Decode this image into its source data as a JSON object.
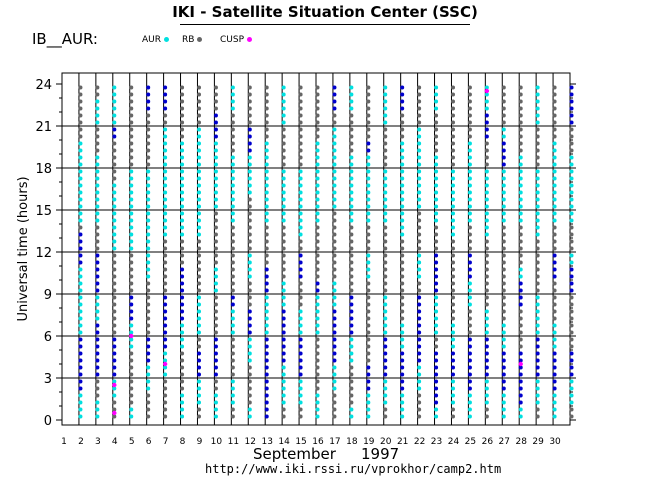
{
  "title": "IKI - Satellite Situation Center (SSC)",
  "satellite_label": "IB__AUR:",
  "legend": [
    {
      "label": "AUR",
      "color": "#00e0e0"
    },
    {
      "label": "RB",
      "color": "#666666"
    },
    {
      "label": "CUSP",
      "color": "#ff00ff"
    }
  ],
  "footer": {
    "month": "September",
    "year": "1997",
    "url": "http://www.iki.rssi.ru/vprokhor/camp2.htm"
  },
  "colors": {
    "AUR": "#00e0e0",
    "RB": "#666666",
    "CUSP": "#ff00ff",
    "dark": "#0000cc"
  },
  "chart_data": {
    "type": "scatter",
    "title": "IKI - Satellite Situation Center (SSC)",
    "xlabel": "September 1997",
    "ylabel": "Universal time (hours)",
    "x_categories": [
      "1",
      "2",
      "3",
      "4",
      "5",
      "6",
      "7",
      "8",
      "9",
      "10",
      "11",
      "12",
      "13",
      "14",
      "15",
      "16",
      "17",
      "18",
      "19",
      "20",
      "21",
      "22",
      "23",
      "24",
      "25",
      "26",
      "27",
      "28",
      "29",
      "30"
    ],
    "ylim": [
      0,
      24
    ],
    "yticks": [
      "0",
      "3",
      "6",
      "9",
      "12",
      "15",
      "18",
      "21",
      "24"
    ],
    "grid": true,
    "legend_position": "top",
    "series": [
      {
        "name": "AUR",
        "segments": [
          [
            [
              1,
              0,
              2
            ],
            [
              1,
              6,
              11
            ],
            [
              1,
              14,
              20
            ]
          ],
          [
            [
              2,
              0,
              1.5
            ],
            [
              2,
              7,
              9
            ],
            [
              2,
              14,
              19
            ],
            [
              2,
              21,
              23
            ]
          ],
          [
            [
              3,
              1.5,
              3
            ],
            [
              3,
              12,
              17
            ],
            [
              3,
              21,
              24
            ]
          ],
          [
            [
              4,
              0,
              1
            ],
            [
              4,
              5,
              7
            ],
            [
              4,
              12,
              18
            ]
          ],
          [
            [
              5,
              2,
              4
            ],
            [
              5,
              10,
              18
            ],
            [
              5,
              22,
              24
            ]
          ],
          [
            [
              6,
              3,
              5
            ],
            [
              6,
              13,
              21
            ]
          ],
          [
            [
              7,
              0,
              2
            ],
            [
              7,
              5,
              7
            ],
            [
              7,
              13,
              20
            ]
          ],
          [
            [
              8,
              1,
              3
            ],
            [
              8,
              6,
              9
            ],
            [
              8,
              13,
              21
            ]
          ],
          [
            [
              9,
              0,
              2
            ],
            [
              9,
              9,
              11
            ],
            [
              9,
              15,
              20
            ]
          ],
          [
            [
              10,
              1,
              3
            ],
            [
              10,
              6,
              8
            ],
            [
              10,
              14,
              19
            ],
            [
              10,
              22,
              24
            ]
          ],
          [
            [
              11,
              0,
              1
            ],
            [
              11,
              4,
              6
            ],
            [
              11,
              10,
              12
            ],
            [
              11,
              16,
              21
            ]
          ],
          [
            [
              12,
              0,
              2
            ],
            [
              12,
              6,
              9
            ],
            [
              12,
              14,
              20
            ]
          ],
          [
            [
              13,
              1,
              4
            ],
            [
              13,
              8,
              10
            ],
            [
              13,
              14,
              18
            ],
            [
              13,
              21,
              24
            ]
          ],
          [
            [
              14,
              1,
              3
            ],
            [
              14,
              6,
              8
            ],
            [
              14,
              13,
              18
            ]
          ],
          [
            [
              15,
              0,
              2
            ],
            [
              15,
              6,
              9
            ],
            [
              15,
              14,
              20
            ]
          ],
          [
            [
              16,
              2,
              4
            ],
            [
              16,
              8,
              10
            ],
            [
              16,
              15,
              21
            ]
          ],
          [
            [
              17,
              0,
              1
            ],
            [
              17,
              4,
              6
            ],
            [
              17,
              14,
              19
            ],
            [
              17,
              22,
              24
            ]
          ],
          [
            [
              18,
              0,
              2
            ],
            [
              18,
              10,
              12
            ],
            [
              18,
              14,
              20
            ]
          ],
          [
            [
              19,
              1,
              3
            ],
            [
              19,
              6,
              9
            ],
            [
              19,
              14,
              18
            ],
            [
              19,
              21,
              24
            ]
          ],
          [
            [
              20,
              0,
              2
            ],
            [
              20,
              5,
              7
            ],
            [
              20,
              13,
              20
            ]
          ],
          [
            [
              21,
              2,
              4
            ],
            [
              21,
              10,
              12
            ],
            [
              21,
              15,
              21
            ]
          ],
          [
            [
              22,
              0,
              1
            ],
            [
              22,
              6,
              9
            ],
            [
              22,
              14,
              19
            ],
            [
              22,
              22,
              24
            ]
          ],
          [
            [
              23,
              1,
              3
            ],
            [
              23,
              5,
              7
            ],
            [
              23,
              13,
              18
            ]
          ],
          [
            [
              24,
              0,
              2
            ],
            [
              24,
              8,
              10
            ],
            [
              24,
              14,
              20
            ]
          ],
          [
            [
              25,
              1,
              3
            ],
            [
              25,
              6,
              8
            ],
            [
              25,
              13,
              18
            ],
            [
              25,
              22,
              24
            ]
          ],
          [
            [
              26,
              0,
              2
            ],
            [
              26,
              5,
              7
            ],
            [
              26,
              14,
              21
            ]
          ],
          [
            [
              27,
              0,
              1
            ],
            [
              27,
              9,
              11
            ],
            [
              27,
              14,
              19
            ]
          ],
          [
            [
              28,
              1,
              3
            ],
            [
              28,
              6,
              9
            ],
            [
              28,
              13,
              18
            ],
            [
              28,
              21,
              24
            ]
          ],
          [
            [
              29,
              0,
              2
            ],
            [
              29,
              5,
              7
            ],
            [
              29,
              14,
              20
            ]
          ],
          [
            [
              30,
              1,
              3
            ],
            [
              30,
              10,
              12
            ],
            [
              30,
              14,
              19
            ]
          ]
        ]
      },
      {
        "name": "CUSP",
        "points": [
          [
            3,
            0.5
          ],
          [
            4,
            6
          ],
          [
            6,
            4
          ],
          [
            25,
            23.5
          ],
          [
            27,
            4
          ],
          [
            3,
            2.5
          ]
        ]
      }
    ],
    "dark_segments": [
      [
        1,
        2,
        6
      ],
      [
        1,
        11,
        13.5
      ],
      [
        2,
        3,
        7
      ],
      [
        2,
        9,
        12
      ],
      [
        3,
        3,
        6
      ],
      [
        3,
        20,
        21
      ],
      [
        4,
        7,
        9
      ],
      [
        5,
        4,
        6
      ],
      [
        5,
        22,
        24
      ],
      [
        6,
        5,
        9
      ],
      [
        6,
        22,
        24
      ],
      [
        7,
        7,
        11
      ],
      [
        8,
        3,
        5
      ],
      [
        9,
        3,
        6
      ],
      [
        9,
        20,
        22
      ],
      [
        10,
        8,
        9
      ],
      [
        11,
        6,
        8
      ],
      [
        11,
        19,
        21
      ],
      [
        12,
        0,
        6
      ],
      [
        12,
        9,
        11
      ],
      [
        13,
        4,
        8
      ],
      [
        14,
        3,
        6
      ],
      [
        14,
        10,
        12
      ],
      [
        15,
        9,
        10
      ],
      [
        16,
        4,
        8
      ],
      [
        16,
        22,
        24
      ],
      [
        17,
        6,
        9
      ],
      [
        18,
        2,
        4
      ],
      [
        18,
        19,
        20
      ],
      [
        19,
        3,
        6
      ],
      [
        20,
        2,
        5
      ],
      [
        20,
        22,
        24
      ],
      [
        21,
        4,
        9
      ],
      [
        22,
        1,
        5
      ],
      [
        22,
        9,
        12
      ],
      [
        23,
        3,
        5
      ],
      [
        24,
        2,
        6
      ],
      [
        24,
        10,
        12
      ],
      [
        25,
        3,
        6
      ],
      [
        25,
        20,
        22
      ],
      [
        26,
        2,
        5
      ],
      [
        26,
        18,
        20
      ],
      [
        27,
        1,
        5
      ],
      [
        27,
        8,
        10
      ],
      [
        28,
        3,
        6
      ],
      [
        29,
        2,
        5
      ],
      [
        29,
        10,
        12
      ],
      [
        30,
        3,
        5
      ],
      [
        30,
        9,
        11
      ],
      [
        30,
        21,
        24
      ]
    ]
  }
}
